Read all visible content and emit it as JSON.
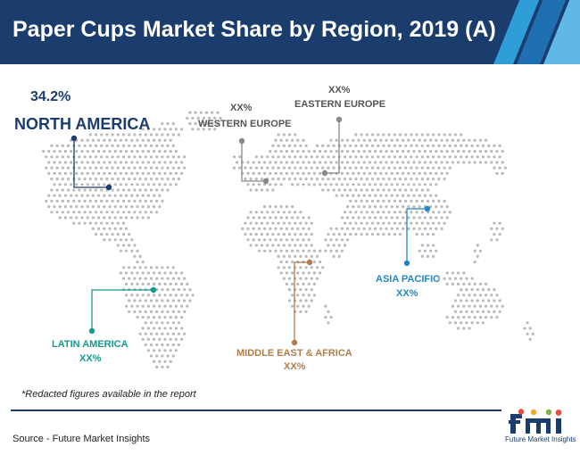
{
  "header": {
    "title": "Paper Cups Market Share by Region, 2019 (A)",
    "colors": {
      "background": "#1b3d6d",
      "stripes": [
        "#2f9ed8",
        "#1f6fb3",
        "#5fb8e6"
      ]
    }
  },
  "regions": {
    "north_america": {
      "name": "NORTH AMERICA",
      "value": "34.2%",
      "color": "#1b3d6d"
    },
    "western_europe": {
      "name": "WESTERN EUROPE",
      "value": "XX%",
      "color": "#888888"
    },
    "eastern_europe": {
      "name": "EASTERN EUROPE",
      "value": "XX%",
      "color": "#888888"
    },
    "asia_pacific": {
      "name": "ASIA PACIFIC",
      "value": "XX%",
      "color": "#1e88c9"
    },
    "latin_america": {
      "name": "LATIN AMERICA",
      "value": "XX%",
      "color": "#159a8f"
    },
    "middle_east_africa": {
      "name": "MIDDLE EAST & AFRICA",
      "value": "XX%",
      "color": "#b07d4a"
    }
  },
  "footnote": "*Redacted figures available in the report",
  "source": "Source - Future Market Insights",
  "logo": {
    "letters": "fmi",
    "text": "Future Market Insights"
  }
}
